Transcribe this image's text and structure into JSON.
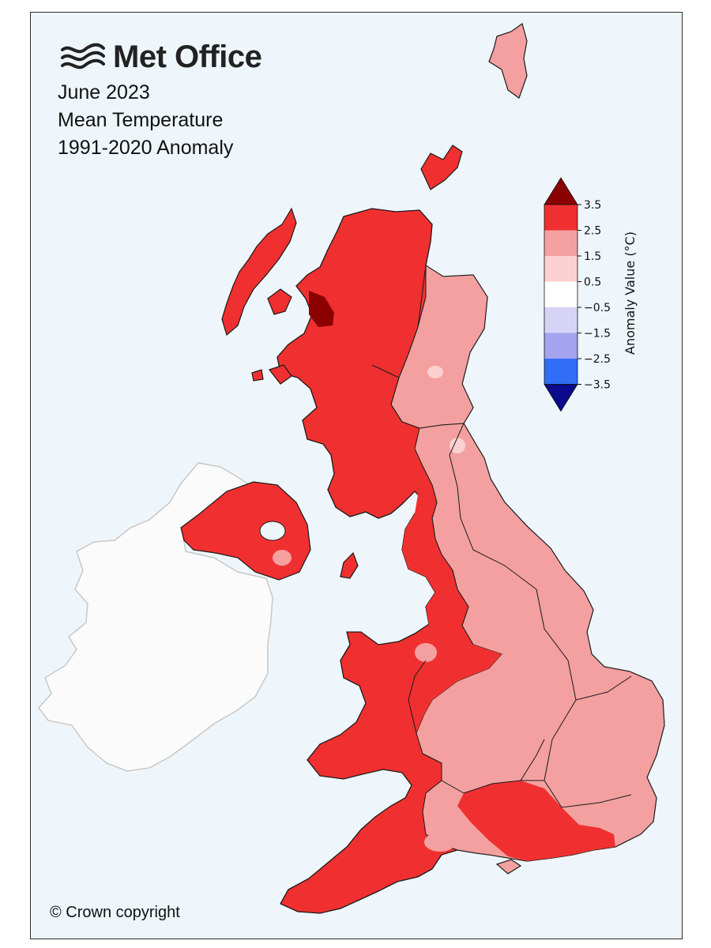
{
  "brand": {
    "name": "Met Office",
    "logo_icon": "met-office-waves-logo"
  },
  "titles": {
    "period": "June 2023",
    "variable": "Mean Temperature",
    "baseline": "1991-2020 Anomaly"
  },
  "footer": {
    "copyright": "© Crown copyright"
  },
  "legend": {
    "title": "Anomaly Value (°C)",
    "ticks": [
      "3.5",
      "2.5",
      "1.5",
      "0.5",
      "−0.5",
      "−1.5",
      "−2.5",
      "−3.5"
    ],
    "bins": [
      {
        "range": "> 3.5",
        "color": "#8b0000"
      },
      {
        "range": "2.5 to 3.5",
        "color": "#f03030"
      },
      {
        "range": "1.5 to 2.5",
        "color": "#f4a0a0"
      },
      {
        "range": "0.5 to 1.5",
        "color": "#fbd0d0"
      },
      {
        "range": "-0.5 to 0.5",
        "color": "#ffffff"
      },
      {
        "range": "-1.5 to -0.5",
        "color": "#d6d3f6"
      },
      {
        "range": "-2.5 to -1.5",
        "color": "#a3a3f0"
      },
      {
        "range": "-3.5 to -2.5",
        "color": "#2f6ef5"
      },
      {
        "range": "< -3.5",
        "color": "#0a0a8c"
      }
    ]
  },
  "map": {
    "sea_color": "#eef6fb",
    "no_data_color": "#fbfbfb",
    "regions": [
      {
        "name": "Shetland",
        "class": "1.5 to 2.5"
      },
      {
        "name": "Orkney",
        "class": "2.5 to 3.5"
      },
      {
        "name": "Outer Hebrides",
        "class": "2.5 to 3.5"
      },
      {
        "name": "North Scotland",
        "class": "2.5 to 3.5"
      },
      {
        "name": "East Scotland",
        "class": "1.5 to 2.5"
      },
      {
        "name": "West Scotland",
        "class": "2.5 to 3.5"
      },
      {
        "name": "Northern Ireland",
        "class": "2.5 to 3.5"
      },
      {
        "name": "North West England",
        "class": "2.5 to 3.5"
      },
      {
        "name": "North East England",
        "class": "1.5 to 2.5"
      },
      {
        "name": "Midlands",
        "class": "1.5 to 2.5"
      },
      {
        "name": "East Anglia",
        "class": "1.5 to 2.5"
      },
      {
        "name": "Wales",
        "class": "2.5 to 3.5"
      },
      {
        "name": "South West England",
        "class": "2.5 to 3.5"
      },
      {
        "name": "Central Southern England",
        "class": "2.5 to 3.5"
      },
      {
        "name": "South East England",
        "class": "1.5 to 2.5"
      },
      {
        "name": "Republic of Ireland",
        "class": "no data"
      }
    ]
  }
}
